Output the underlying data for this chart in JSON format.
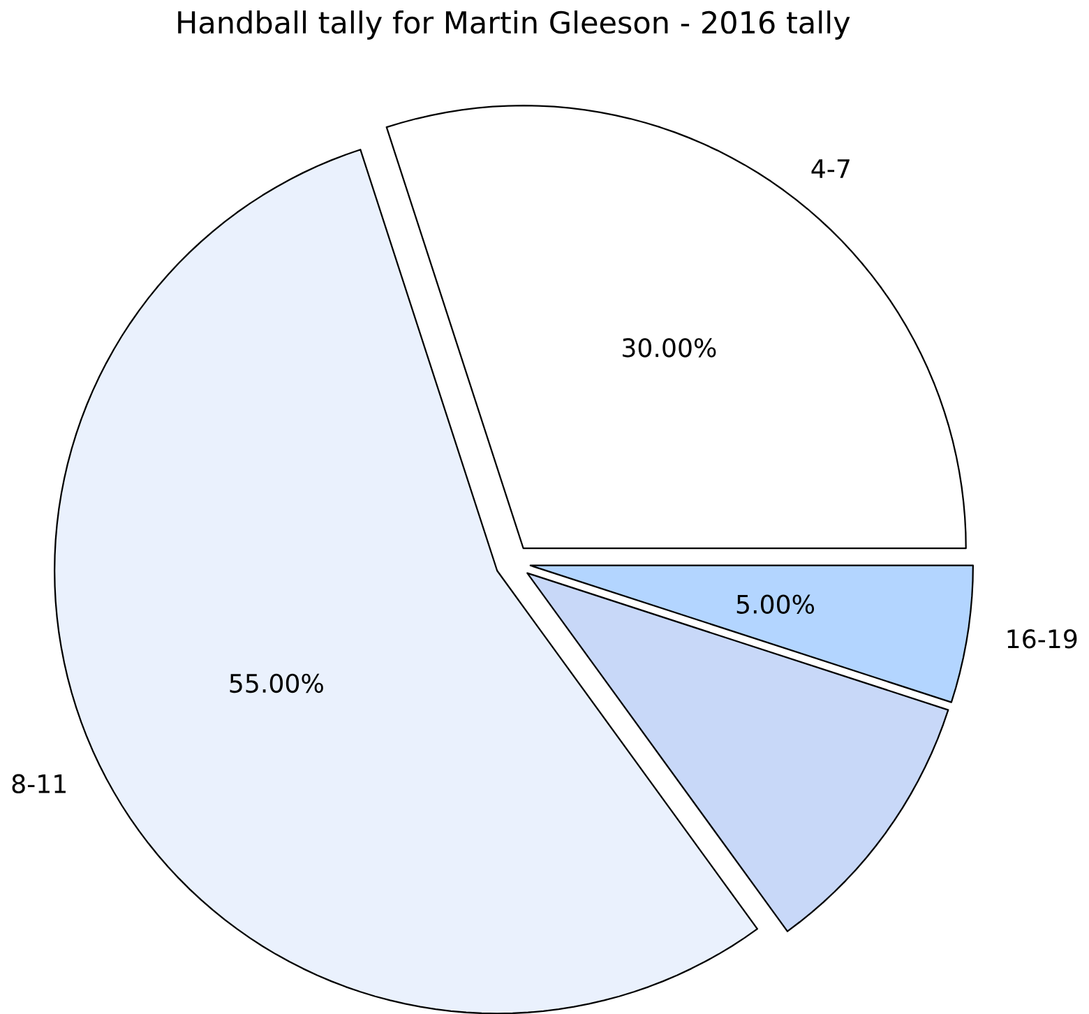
{
  "chart_data": {
    "type": "pie",
    "title": "Handball tally for Martin Gleeson - 2016 tally",
    "categories": [
      "4-7",
      "8-11",
      null,
      "16-19"
    ],
    "values": [
      30,
      55,
      10,
      5
    ],
    "value_labels": [
      "30.00%",
      "55.00%",
      null,
      "5.00%"
    ],
    "colors": [
      "#ffffff",
      "#eaf1fd",
      "#c8d8f8",
      "#b3d5ff"
    ]
  }
}
